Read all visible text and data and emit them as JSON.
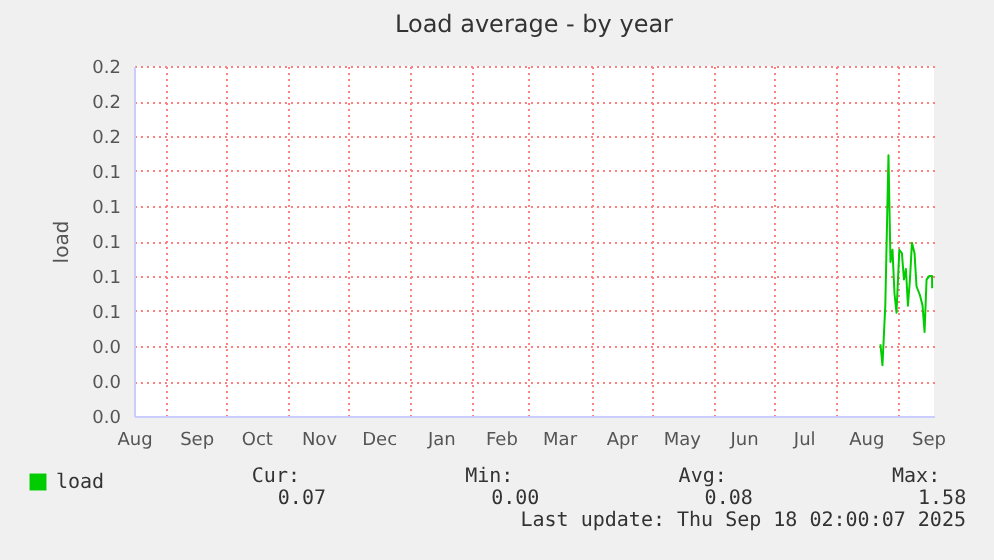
{
  "chart_data": {
    "type": "line",
    "title": "Load average - by year",
    "ylabel": "load",
    "x": [
      "2025-08-23T07:00",
      "2025-08-24T07:00",
      "2025-08-25T17:00",
      "2025-08-27T07:00",
      "2025-08-28T07:00",
      "2025-08-29T07:00",
      "2025-08-30T07:00",
      "2025-08-31T07:00",
      "2025-09-01T17:00",
      "2025-09-03",
      "2025-09-04",
      "2025-09-05",
      "2025-09-06",
      "2025-09-07",
      "2025-09-08",
      "2025-09-09T07:00",
      "2025-09-10T07:00",
      "2025-09-12",
      "2025-09-13T07:00",
      "2025-09-14T07:00",
      "2025-09-15T07:00",
      "2025-09-16T17:00",
      "2025-09-18",
      "2025-09-18T02:00"
    ],
    "series": [
      {
        "name": "load",
        "color": "#00cc00",
        "values": [
          0.041,
          0.029,
          0.063,
          0.149,
          0.088,
          0.095,
          0.07,
          0.059,
          0.095,
          0.093,
          0.078,
          0.084,
          0.063,
          0.078,
          0.099,
          0.093,
          0.074,
          0.069,
          0.063,
          0.048,
          0.078,
          0.08,
          0.08,
          0.073
        ]
      }
    ],
    "xlim": [
      "2024-08-16",
      "2025-09-19"
    ],
    "xticks": [
      {
        "value": "2024-08-16",
        "label": "Aug"
      },
      {
        "value": "2024-09-01",
        "label": null
      },
      {
        "value": "2024-09-16",
        "label": "Sep"
      },
      {
        "value": "2024-10-01",
        "label": null
      },
      {
        "value": "2024-10-16",
        "label": "Oct"
      },
      {
        "value": "2024-11-01",
        "label": null
      },
      {
        "value": "2024-11-16",
        "label": "Nov"
      },
      {
        "value": "2024-12-01",
        "label": null
      },
      {
        "value": "2024-12-16",
        "label": "Dec"
      },
      {
        "value": "2025-01-01",
        "label": null
      },
      {
        "value": "2025-01-16",
        "label": "Jan"
      },
      {
        "value": "2025-02-01",
        "label": null
      },
      {
        "value": "2025-02-15",
        "label": "Feb"
      },
      {
        "value": "2025-03-01",
        "label": null
      },
      {
        "value": "2025-03-16",
        "label": "Mar"
      },
      {
        "value": "2025-04-01",
        "label": null
      },
      {
        "value": "2025-04-16",
        "label": "Apr"
      },
      {
        "value": "2025-05-01",
        "label": null
      },
      {
        "value": "2025-05-16",
        "label": "May"
      },
      {
        "value": "2025-06-01",
        "label": null
      },
      {
        "value": "2025-06-16",
        "label": "Jun"
      },
      {
        "value": "2025-07-01",
        "label": null
      },
      {
        "value": "2025-07-16",
        "label": "Jul"
      },
      {
        "value": "2025-08-01",
        "label": null
      },
      {
        "value": "2025-08-16",
        "label": "Aug"
      },
      {
        "value": "2025-09-01",
        "label": null
      },
      {
        "value": "2025-09-16",
        "label": "Sep"
      }
    ],
    "ylim": [
      0,
      0.2
    ],
    "yticks": [
      {
        "value": 0,
        "label": "0.0"
      },
      {
        "value": 0.02,
        "label": "0.0"
      },
      {
        "value": 0.04,
        "label": "0.0"
      },
      {
        "value": 0.06,
        "label": "0.1"
      },
      {
        "value": 0.08,
        "label": "0.1"
      },
      {
        "value": 0.1,
        "label": "0.1"
      },
      {
        "value": 0.12,
        "label": "0.1"
      },
      {
        "value": 0.14,
        "label": "0.1"
      },
      {
        "value": 0.16,
        "label": "0.2"
      },
      {
        "value": 0.18,
        "label": "0.2"
      },
      {
        "value": 0.2,
        "label": "0.2"
      }
    ],
    "grid": true,
    "legend": "bottom left",
    "marker": "none",
    "line_style": "solid",
    "annotations": [
      "Cur:",
      "0.07",
      "Min:",
      "0.00",
      "Avg:",
      "0.08",
      "Max:",
      "1.58",
      "Last update: Thu Sep 18 02:00:07 2025"
    ]
  }
}
